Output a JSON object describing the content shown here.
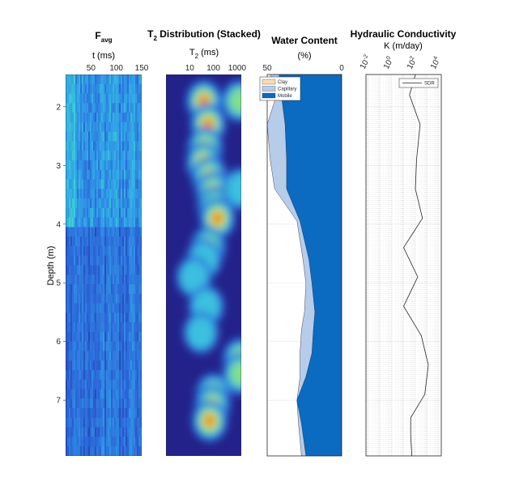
{
  "chart_data": [
    {
      "type": "heatmap",
      "title_main": "F",
      "title_sub": "avg",
      "xlabel": "t (ms)",
      "xticks": [
        "50",
        "100",
        "150"
      ],
      "xtick_values": [
        50,
        100,
        150
      ],
      "xlim": [
        0,
        150
      ],
      "ylabel": "Depth (m)",
      "yticks": [
        "2",
        "3",
        "4",
        "5",
        "6",
        "7"
      ],
      "ytick_values": [
        2,
        3,
        4,
        5,
        6,
        7
      ],
      "ylim": [
        1.45,
        7.95
      ],
      "colormap": [
        "#1f2a8c",
        "#2c64d8",
        "#30a0e8",
        "#3bd2d0"
      ]
    },
    {
      "type": "heatmap",
      "title_main": "T",
      "title_sub": "2",
      "title_rest": " Distribution (Stacked)",
      "xlabel_main": "T",
      "xlabel_sub": "2",
      "xlabel_rest": " (ms)",
      "xticks": [
        "10",
        "100",
        "1000"
      ],
      "xtick_values": [
        10,
        100,
        1000
      ],
      "xscale": "log",
      "xlim": [
        1,
        1500
      ],
      "ylim": [
        1.45,
        7.95
      ],
      "colormap": [
        "#23228a",
        "#2c64d8",
        "#3bc8e0",
        "#8ae27c",
        "#f2e41c",
        "#f58a1c",
        "#e02418"
      ],
      "peaks": [
        {
          "depth": 1.9,
          "t2": 40,
          "amp": 1.0
        },
        {
          "depth": 2.3,
          "t2": 60,
          "amp": 0.9
        },
        {
          "depth": 2.7,
          "t2": 45,
          "amp": 1.0
        },
        {
          "depth": 2.95,
          "t2": 40,
          "amp": 1.0
        },
        {
          "depth": 3.2,
          "t2": 70,
          "amp": 1.0
        },
        {
          "depth": 3.45,
          "t2": 100,
          "amp": 1.0
        },
        {
          "depth": 3.7,
          "t2": 120,
          "amp": 0.95
        },
        {
          "depth": 3.9,
          "t2": 150,
          "amp": 1.0
        },
        {
          "depth": 4.4,
          "t2": 60,
          "amp": 0.45
        },
        {
          "depth": 4.6,
          "t2": 40,
          "amp": 0.4
        },
        {
          "depth": 4.9,
          "t2": 15,
          "amp": 0.3
        },
        {
          "depth": 5.4,
          "t2": 50,
          "amp": 0.35
        },
        {
          "depth": 5.85,
          "t2": 30,
          "amp": 0.3
        },
        {
          "depth": 6.9,
          "t2": 100,
          "amp": 1.0
        },
        {
          "depth": 7.1,
          "t2": 90,
          "amp": 0.95
        },
        {
          "depth": 7.35,
          "t2": 70,
          "amp": 1.0
        },
        {
          "depth": 1.9,
          "t2": 1300,
          "amp": 0.45
        },
        {
          "depth": 3.4,
          "t2": 1400,
          "amp": 0.4
        },
        {
          "depth": 6.3,
          "t2": 1400,
          "amp": 0.5
        },
        {
          "depth": 6.55,
          "t2": 1400,
          "amp": 0.45
        }
      ]
    },
    {
      "type": "area",
      "title": "Water Content",
      "xlabel": "(%)",
      "xticks": [
        "50",
        "0"
      ],
      "xtick_values": [
        50,
        0
      ],
      "xlim": [
        50,
        0
      ],
      "ylim": [
        1.45,
        7.95
      ],
      "legend_position": "top-left",
      "depth": [
        1.45,
        1.9,
        2.3,
        2.9,
        3.4,
        3.95,
        4.6,
        5.0,
        5.5,
        5.8,
        6.2,
        6.6,
        7.0,
        7.4,
        7.95
      ],
      "series": [
        {
          "name": "Clay",
          "color": "#f8dcb2",
          "values": [
            0,
            0,
            0,
            0,
            0,
            0,
            0,
            0,
            0,
            0,
            0,
            0,
            0,
            0,
            0
          ]
        },
        {
          "name": "Capillary",
          "color": "#b7cce9",
          "values": [
            48,
            45,
            50,
            48,
            45,
            30,
            26,
            24,
            25,
            27,
            28,
            28,
            30,
            29,
            27
          ]
        },
        {
          "name": "Mobile",
          "color": "#0a6bc0",
          "values": [
            42,
            40,
            38,
            37,
            37,
            28,
            22,
            20,
            18,
            19,
            20,
            24,
            30,
            27,
            24
          ]
        }
      ]
    },
    {
      "type": "line",
      "title": "Hydraulic Conductivity",
      "xlabel": "K (m/day)",
      "xticks": [
        "10",
        "10",
        "10",
        "10"
      ],
      "xtick_exponents": [
        "-2",
        "0",
        "2",
        "4"
      ],
      "xtick_values": [
        -2,
        0,
        2,
        4
      ],
      "xscale": "log",
      "xlim": [
        -2.2,
        4.2
      ],
      "ylim": [
        1.45,
        7.95
      ],
      "legend_position": "top-right",
      "series": [
        {
          "name": "SDR",
          "color": "#262626",
          "depth": [
            1.45,
            1.8,
            2.3,
            2.9,
            3.4,
            3.9,
            4.4,
            4.9,
            5.4,
            5.9,
            6.4,
            6.9,
            7.3,
            7.6,
            7.95
          ],
          "log10K": [
            2.0,
            1.5,
            2.4,
            2.1,
            2.0,
            2.6,
            1.0,
            2.2,
            1.0,
            2.5,
            3.1,
            2.8,
            1.6,
            1.6,
            1.7
          ]
        }
      ]
    }
  ]
}
